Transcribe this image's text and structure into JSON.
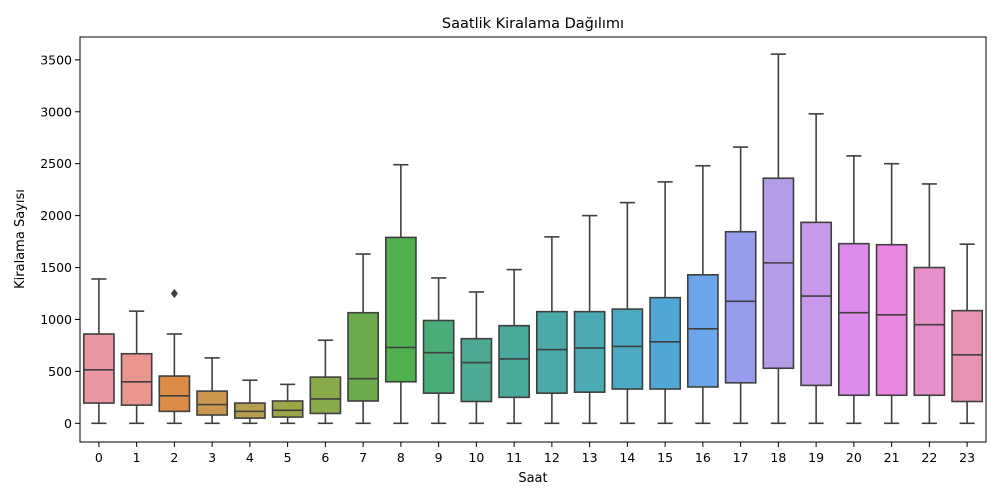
{
  "chart_data": {
    "type": "boxplot",
    "title": "Saatlik Kiralama Dağılımı",
    "xlabel": "Saat",
    "ylabel": "Kiralama Sayısı",
    "ylim": [
      -180,
      3720
    ],
    "yticks": [
      0,
      500,
      1000,
      1500,
      2000,
      2500,
      3000,
      3500
    ],
    "grid": false,
    "legend": "none",
    "categories": [
      "0",
      "1",
      "2",
      "3",
      "4",
      "5",
      "6",
      "7",
      "8",
      "9",
      "10",
      "11",
      "12",
      "13",
      "14",
      "15",
      "16",
      "17",
      "18",
      "19",
      "20",
      "21",
      "22",
      "23"
    ],
    "boxes": [
      {
        "min": 0,
        "q1": 195,
        "median": 515,
        "q3": 860,
        "max": 1390,
        "outliers": []
      },
      {
        "min": 0,
        "q1": 175,
        "median": 400,
        "q3": 670,
        "max": 1080,
        "outliers": []
      },
      {
        "min": 0,
        "q1": 115,
        "median": 265,
        "q3": 455,
        "max": 860,
        "outliers": [
          1250
        ]
      },
      {
        "min": 0,
        "q1": 80,
        "median": 180,
        "q3": 310,
        "max": 630,
        "outliers": []
      },
      {
        "min": 0,
        "q1": 50,
        "median": 115,
        "q3": 195,
        "max": 415,
        "outliers": []
      },
      {
        "min": 0,
        "q1": 60,
        "median": 125,
        "q3": 215,
        "max": 375,
        "outliers": []
      },
      {
        "min": 0,
        "q1": 95,
        "median": 235,
        "q3": 445,
        "max": 800,
        "outliers": []
      },
      {
        "min": 0,
        "q1": 215,
        "median": 430,
        "q3": 1065,
        "max": 1630,
        "outliers": []
      },
      {
        "min": 0,
        "q1": 400,
        "median": 730,
        "q3": 1790,
        "max": 2490,
        "outliers": []
      },
      {
        "min": 0,
        "q1": 290,
        "median": 680,
        "q3": 990,
        "max": 1400,
        "outliers": []
      },
      {
        "min": 0,
        "q1": 210,
        "median": 585,
        "q3": 815,
        "max": 1265,
        "outliers": []
      },
      {
        "min": 0,
        "q1": 250,
        "median": 620,
        "q3": 940,
        "max": 1480,
        "outliers": []
      },
      {
        "min": 0,
        "q1": 290,
        "median": 710,
        "q3": 1075,
        "max": 1795,
        "outliers": []
      },
      {
        "min": 0,
        "q1": 300,
        "median": 725,
        "q3": 1075,
        "max": 2000,
        "outliers": []
      },
      {
        "min": 0,
        "q1": 330,
        "median": 740,
        "q3": 1100,
        "max": 2125,
        "outliers": []
      },
      {
        "min": 0,
        "q1": 330,
        "median": 785,
        "q3": 1210,
        "max": 2325,
        "outliers": []
      },
      {
        "min": 0,
        "q1": 350,
        "median": 910,
        "q3": 1430,
        "max": 2480,
        "outliers": []
      },
      {
        "min": 0,
        "q1": 390,
        "median": 1175,
        "q3": 1845,
        "max": 2660,
        "outliers": []
      },
      {
        "min": 0,
        "q1": 530,
        "median": 1545,
        "q3": 2360,
        "max": 3555,
        "outliers": []
      },
      {
        "min": 0,
        "q1": 365,
        "median": 1225,
        "q3": 1935,
        "max": 2980,
        "outliers": []
      },
      {
        "min": 0,
        "q1": 270,
        "median": 1065,
        "q3": 1730,
        "max": 2575,
        "outliers": []
      },
      {
        "min": 0,
        "q1": 270,
        "median": 1045,
        "q3": 1720,
        "max": 2500,
        "outliers": []
      },
      {
        "min": 0,
        "q1": 270,
        "median": 950,
        "q3": 1500,
        "max": 2305,
        "outliers": []
      },
      {
        "min": 0,
        "q1": 210,
        "median": 660,
        "q3": 1085,
        "max": 1725,
        "outliers": []
      }
    ],
    "colors": [
      "#ea96a3",
      "#e8968e",
      "#dc8b49",
      "#cb9650",
      "#b59e4e",
      "#9da549",
      "#89ab4b",
      "#6cab4b",
      "#4fb04e",
      "#4aad79",
      "#4baa91",
      "#4aa99d",
      "#4ba9a8",
      "#4ba9b3",
      "#4ca9c2",
      "#50a7d6",
      "#6ba6ea",
      "#979ded",
      "#b49de7",
      "#c799eb",
      "#db8bea",
      "#e886e2",
      "#e88fcc",
      "#e893b4"
    ],
    "line_color": "#3f3f3f"
  }
}
